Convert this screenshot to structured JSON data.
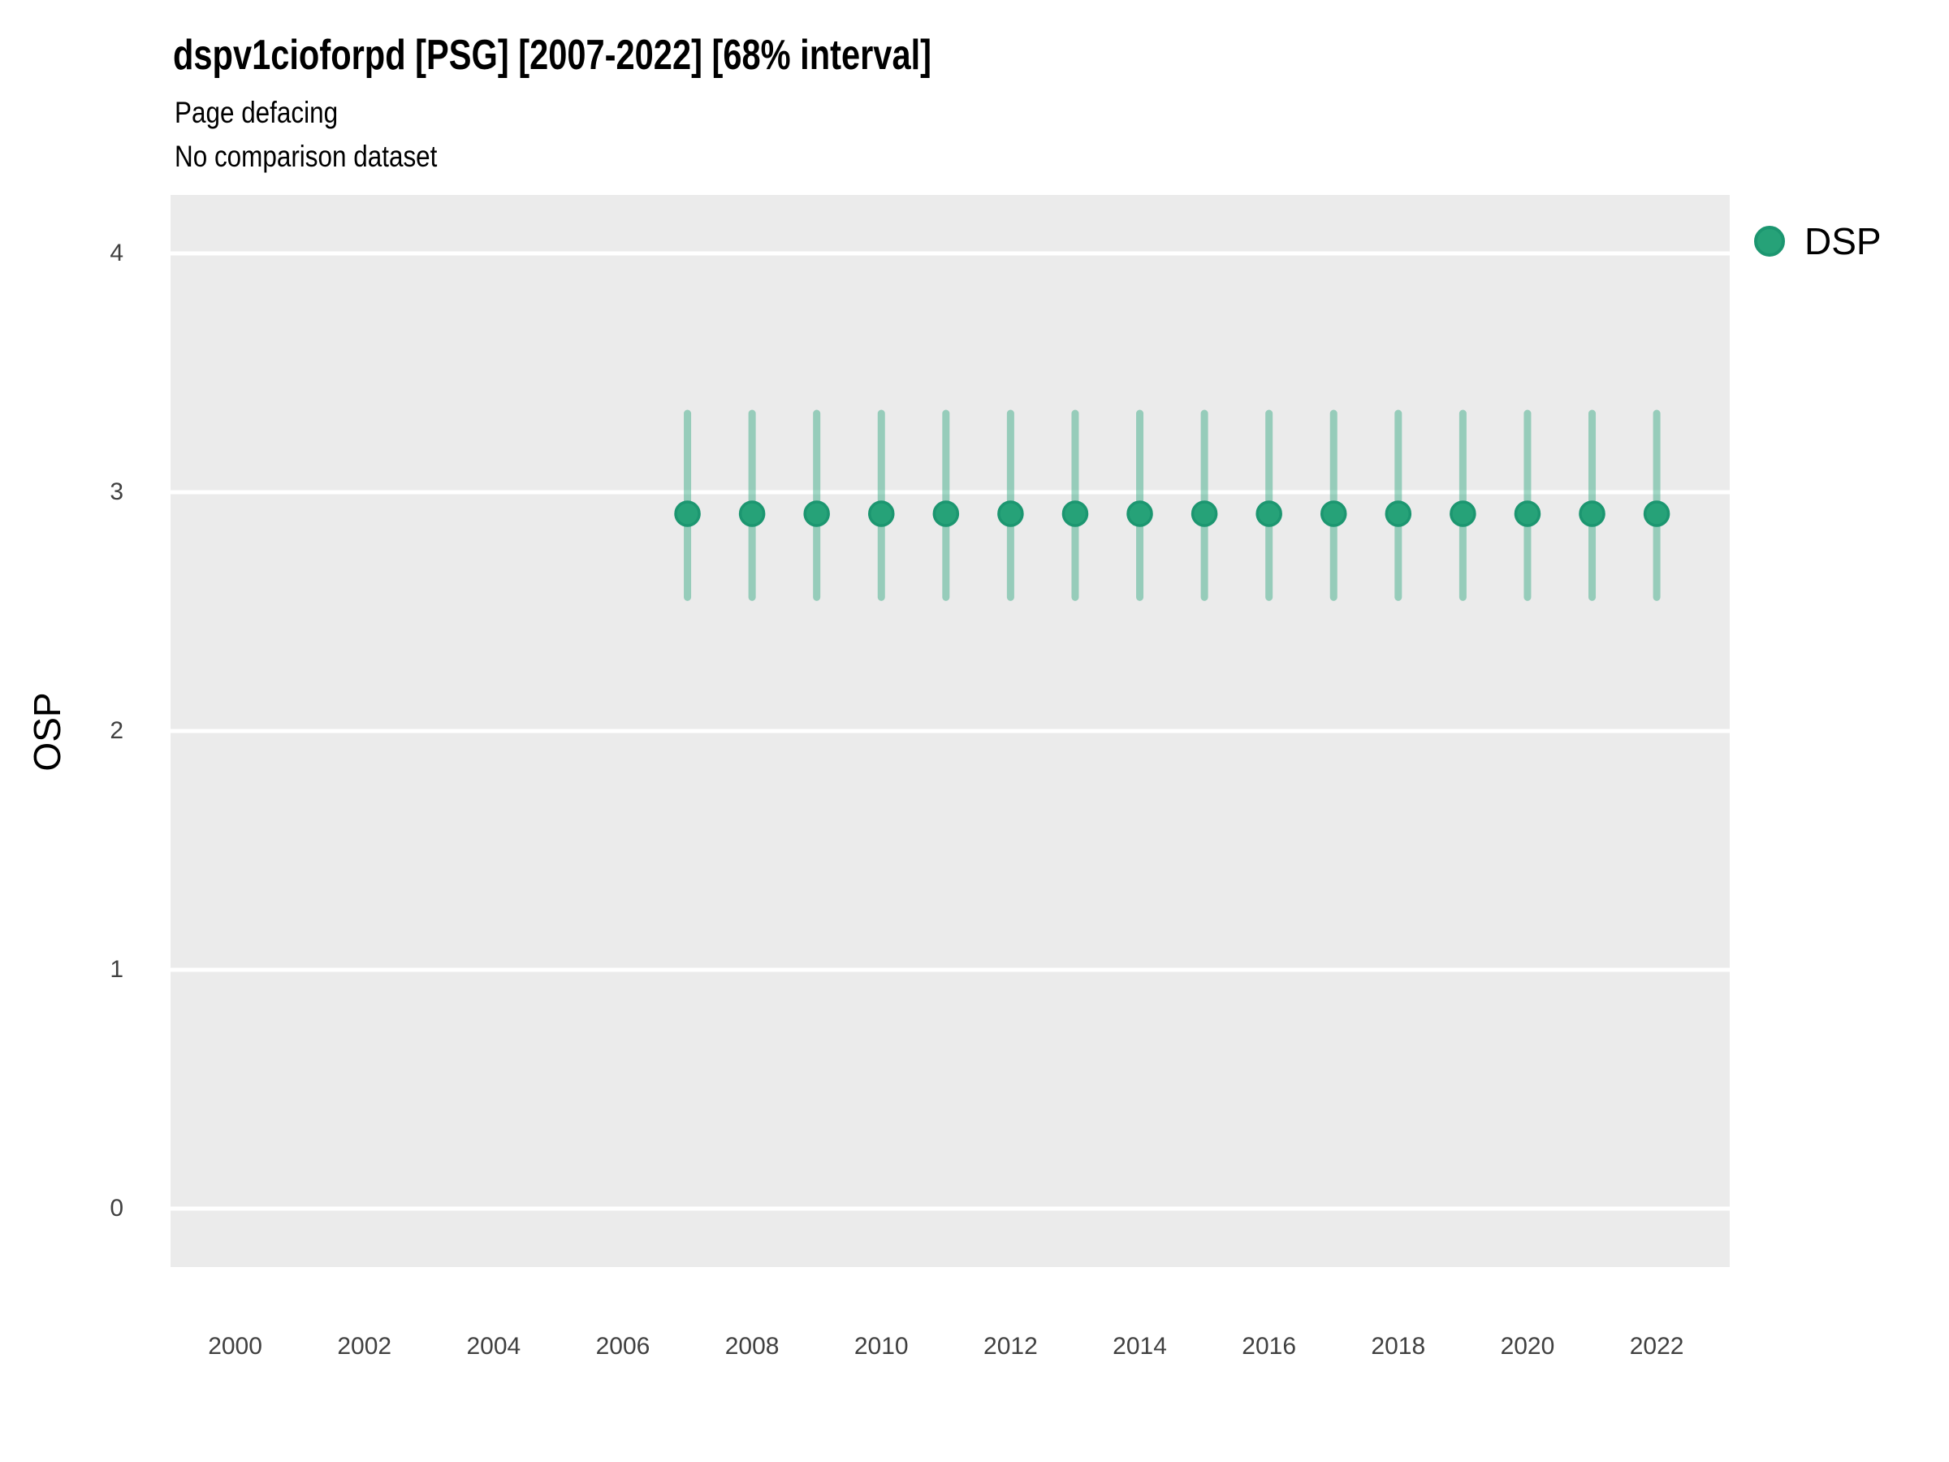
{
  "colors": {
    "panel_bg": "#EBEBEB",
    "gridline": "#FFFFFF",
    "point_fill": "#26A278",
    "point_stroke": "#1C9670",
    "errorbar": "#26A278",
    "errorbar_opacity": 0.43,
    "tick_text": "#404040",
    "title_text": "#000000"
  },
  "chart_data": {
    "type": "scatter",
    "title": "dspv1cioforpd [PSG] [2007-2022] [68% interval]",
    "subtitle": [
      "Page defacing",
      "No comparison dataset"
    ],
    "xlabel": "",
    "ylabel": "OSP",
    "interval_label": "68% interval",
    "series": [
      {
        "name": "DSP",
        "x": [
          2007,
          2008,
          2009,
          2010,
          2011,
          2012,
          2013,
          2014,
          2015,
          2016,
          2017,
          2018,
          2019,
          2020,
          2021,
          2022
        ],
        "y": [
          2.91,
          2.91,
          2.91,
          2.91,
          2.91,
          2.91,
          2.91,
          2.91,
          2.91,
          2.91,
          2.91,
          2.91,
          2.91,
          2.91,
          2.91,
          2.91
        ],
        "y_lower": [
          2.56,
          2.56,
          2.56,
          2.56,
          2.56,
          2.56,
          2.56,
          2.56,
          2.56,
          2.56,
          2.56,
          2.56,
          2.56,
          2.56,
          2.56,
          2.56
        ],
        "y_upper": [
          3.33,
          3.33,
          3.33,
          3.33,
          3.33,
          3.33,
          3.33,
          3.33,
          3.33,
          3.33,
          3.33,
          3.33,
          3.33,
          3.33,
          3.33,
          3.33
        ]
      }
    ],
    "xticks": [
      2000,
      2002,
      2004,
      2006,
      2008,
      2010,
      2012,
      2014,
      2016,
      2018,
      2020,
      2022
    ],
    "yticks": [
      0,
      1,
      2,
      3,
      4
    ],
    "xlim": [
      1999.0,
      2023.13
    ],
    "ylim": [
      -0.245,
      4.245
    ],
    "grid": "horizontal-major-only",
    "legend_position": "right-top"
  }
}
